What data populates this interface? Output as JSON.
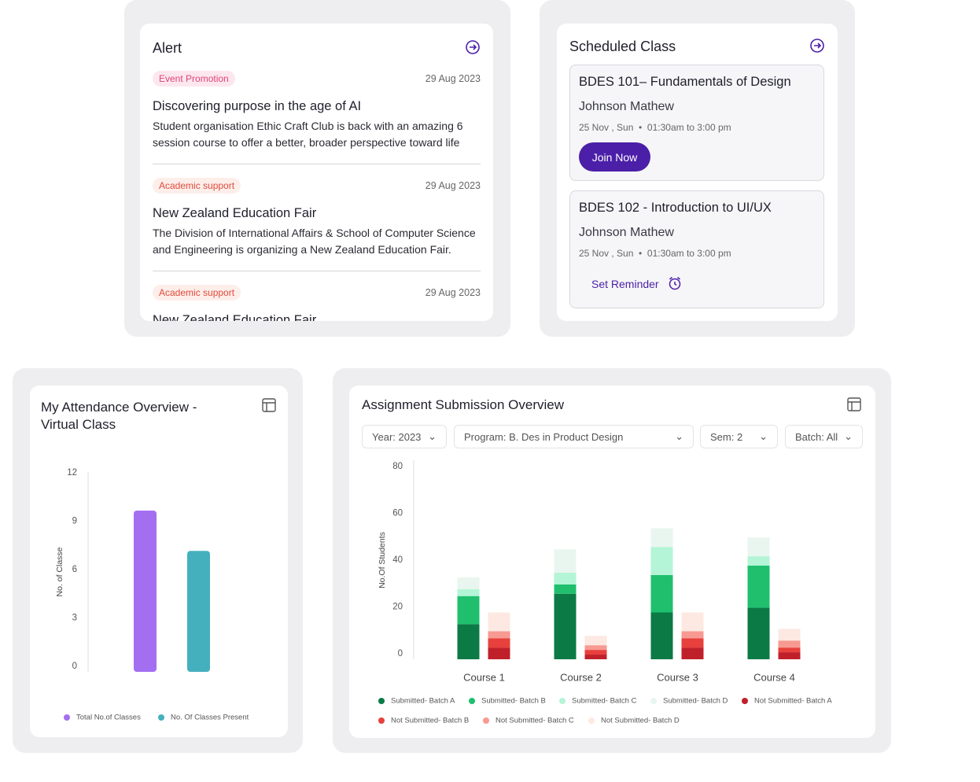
{
  "alert": {
    "title": "Alert",
    "items": [
      {
        "tag": "Event Promotion",
        "date": "29 Aug 2023",
        "title": "Discovering purpose in the age of AI",
        "body": "Student organisation Ethic Craft Club is back with an amazing 6 session course to offer a better, broader perspective toward life"
      },
      {
        "tag": "Academic support",
        "date": "29 Aug 2023",
        "title": "New Zealand Education Fair",
        "body": "The Division of International Affairs & School of Computer Science and Engineering is organizing  a New Zealand Education Fair."
      },
      {
        "tag": "Academic support",
        "date": "29 Aug 2023",
        "title": "New Zealand Education Fair"
      }
    ]
  },
  "scheduled_class": {
    "title": "Scheduled Class",
    "classes": [
      {
        "name": "BDES 101– Fundamentals of Design",
        "instructor": "Johnson Mathew",
        "day": "25 Nov , Sun",
        "time": "01:30am to 3:00 pm",
        "action": "Join Now"
      },
      {
        "name": "BDES 102 - Introduction to UI/UX",
        "instructor": "Johnson Mathew",
        "day": "25 Nov , Sun",
        "time": "01:30am to 3:00 pm",
        "action": "Set Reminder"
      }
    ]
  },
  "chart_data": [
    {
      "type": "bar",
      "title": "My Attendance Overview - Virtual Class",
      "y_label": "No. of Classe",
      "categories": [
        null
      ],
      "ylim": [
        0,
        12
      ],
      "yticks": [
        0,
        3,
        6,
        9,
        12
      ],
      "series": [
        {
          "name": "Total No.of Classes",
          "color": "#a46ef0",
          "values": [
            10
          ]
        },
        {
          "name": "No. Of Classes Present",
          "color": "#45b0bd",
          "values": [
            7.5
          ]
        }
      ]
    },
    {
      "type": "stacked_bar",
      "title": "Assignment Submission Overview",
      "y_label": "No.Of Students",
      "filters": [
        "Year: 2023",
        "Program: B. Des in Product Design",
        "Sem: 2",
        "Batch: All"
      ],
      "categories": [
        "Course 1",
        "Course 2",
        "Course 3",
        "Course  4"
      ],
      "ylim": [
        0,
        80
      ],
      "yticks": [
        0,
        20,
        40,
        60,
        80
      ],
      "series": [
        {
          "name": "Submitted- Batch A",
          "color": "#0b7a45",
          "values": [
            15,
            28,
            20,
            22
          ]
        },
        {
          "name": "Submitted- Batch B",
          "color": "#1fbf6e",
          "values": [
            12,
            4,
            16,
            18
          ]
        },
        {
          "name": "Submitted- Batch C",
          "color": "#b3f5d6",
          "values": [
            3,
            5,
            12,
            4
          ]
        },
        {
          "name": "Submitted- Batch D",
          "color": "#e9f6ef",
          "values": [
            5,
            10,
            8,
            8
          ]
        },
        {
          "name": "Not Submitted- Batch A",
          "color": "#c0202a",
          "values": [
            5,
            2,
            5,
            3
          ]
        },
        {
          "name": "Not Submitted- Batch B",
          "color": "#e8403c",
          "values": [
            4,
            2,
            4,
            2
          ]
        },
        {
          "name": "Not Submitted- Batch C",
          "color": "#f79a92",
          "values": [
            3,
            2,
            3,
            3
          ]
        },
        {
          "name": "Not Submitted- Batch D",
          "color": "#fde8e2",
          "values": [
            8,
            4,
            8,
            5
          ]
        }
      ]
    }
  ]
}
